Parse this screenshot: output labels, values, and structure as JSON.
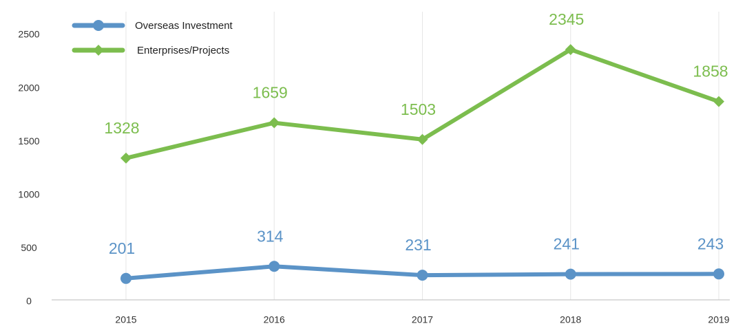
{
  "chart_data": {
    "type": "line",
    "categories": [
      "2015",
      "2016",
      "2017",
      "2018",
      "2019"
    ],
    "series": [
      {
        "name": "Overseas Investment",
        "color": "#5b93c7",
        "marker": "circle",
        "values": [
          201,
          314,
          231,
          241,
          243
        ]
      },
      {
        "name": "Enterprises/Projects",
        "color": "#7cbd4e",
        "marker": "diamond",
        "values": [
          1328,
          1659,
          1503,
          2345,
          1858
        ]
      }
    ],
    "ylim": [
      0,
      2700
    ],
    "yticks": [
      0,
      500,
      1000,
      1500,
      2000,
      2500
    ],
    "grid": "x",
    "legend": "top-left",
    "data_labels": true
  }
}
